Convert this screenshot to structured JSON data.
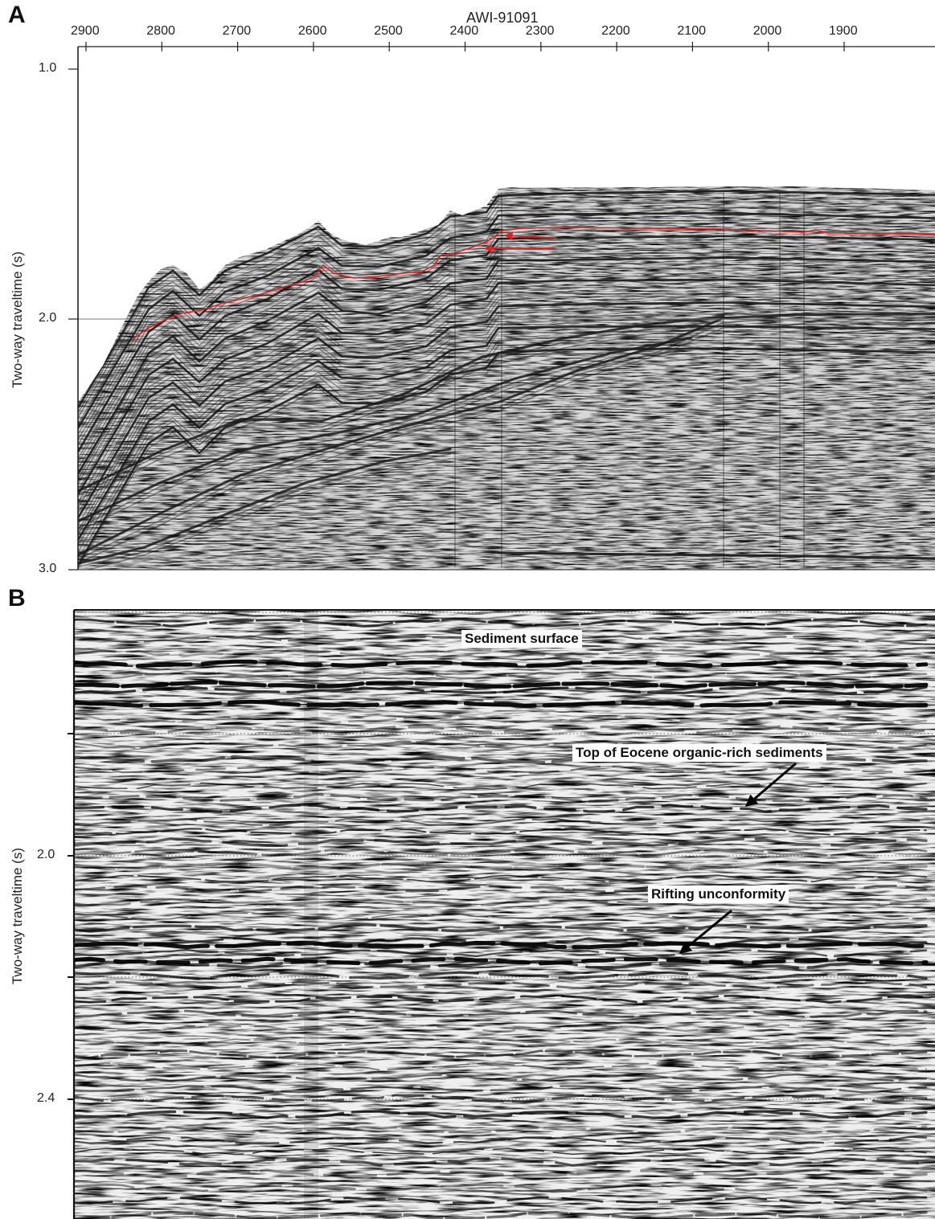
{
  "panel_a": {
    "letter": "A",
    "line_title": "AWI-91091",
    "x_ticks": [
      "2900",
      "2800",
      "2700",
      "2600",
      "2500",
      "2400",
      "2300",
      "2200",
      "2100",
      "2000",
      "1900"
    ],
    "y_ticks": [
      "1.0",
      "2.0",
      "3.0"
    ],
    "ylabel": "Two-way traveltime (s)"
  },
  "panel_b": {
    "letter": "B",
    "y_ticks": [
      "2.0",
      "2.4"
    ],
    "ylabel": "Two-way traveltime (s)",
    "annotations": {
      "sediment_surface": "Sediment surface",
      "eocene": "Top of Eocene organic-rich sediments",
      "rifting": "Rifting unconformity"
    }
  },
  "colors": {
    "horizon": "#e02020",
    "reflector": "#1a1a1a",
    "background": "#ffffff",
    "axis": "#222222"
  }
}
